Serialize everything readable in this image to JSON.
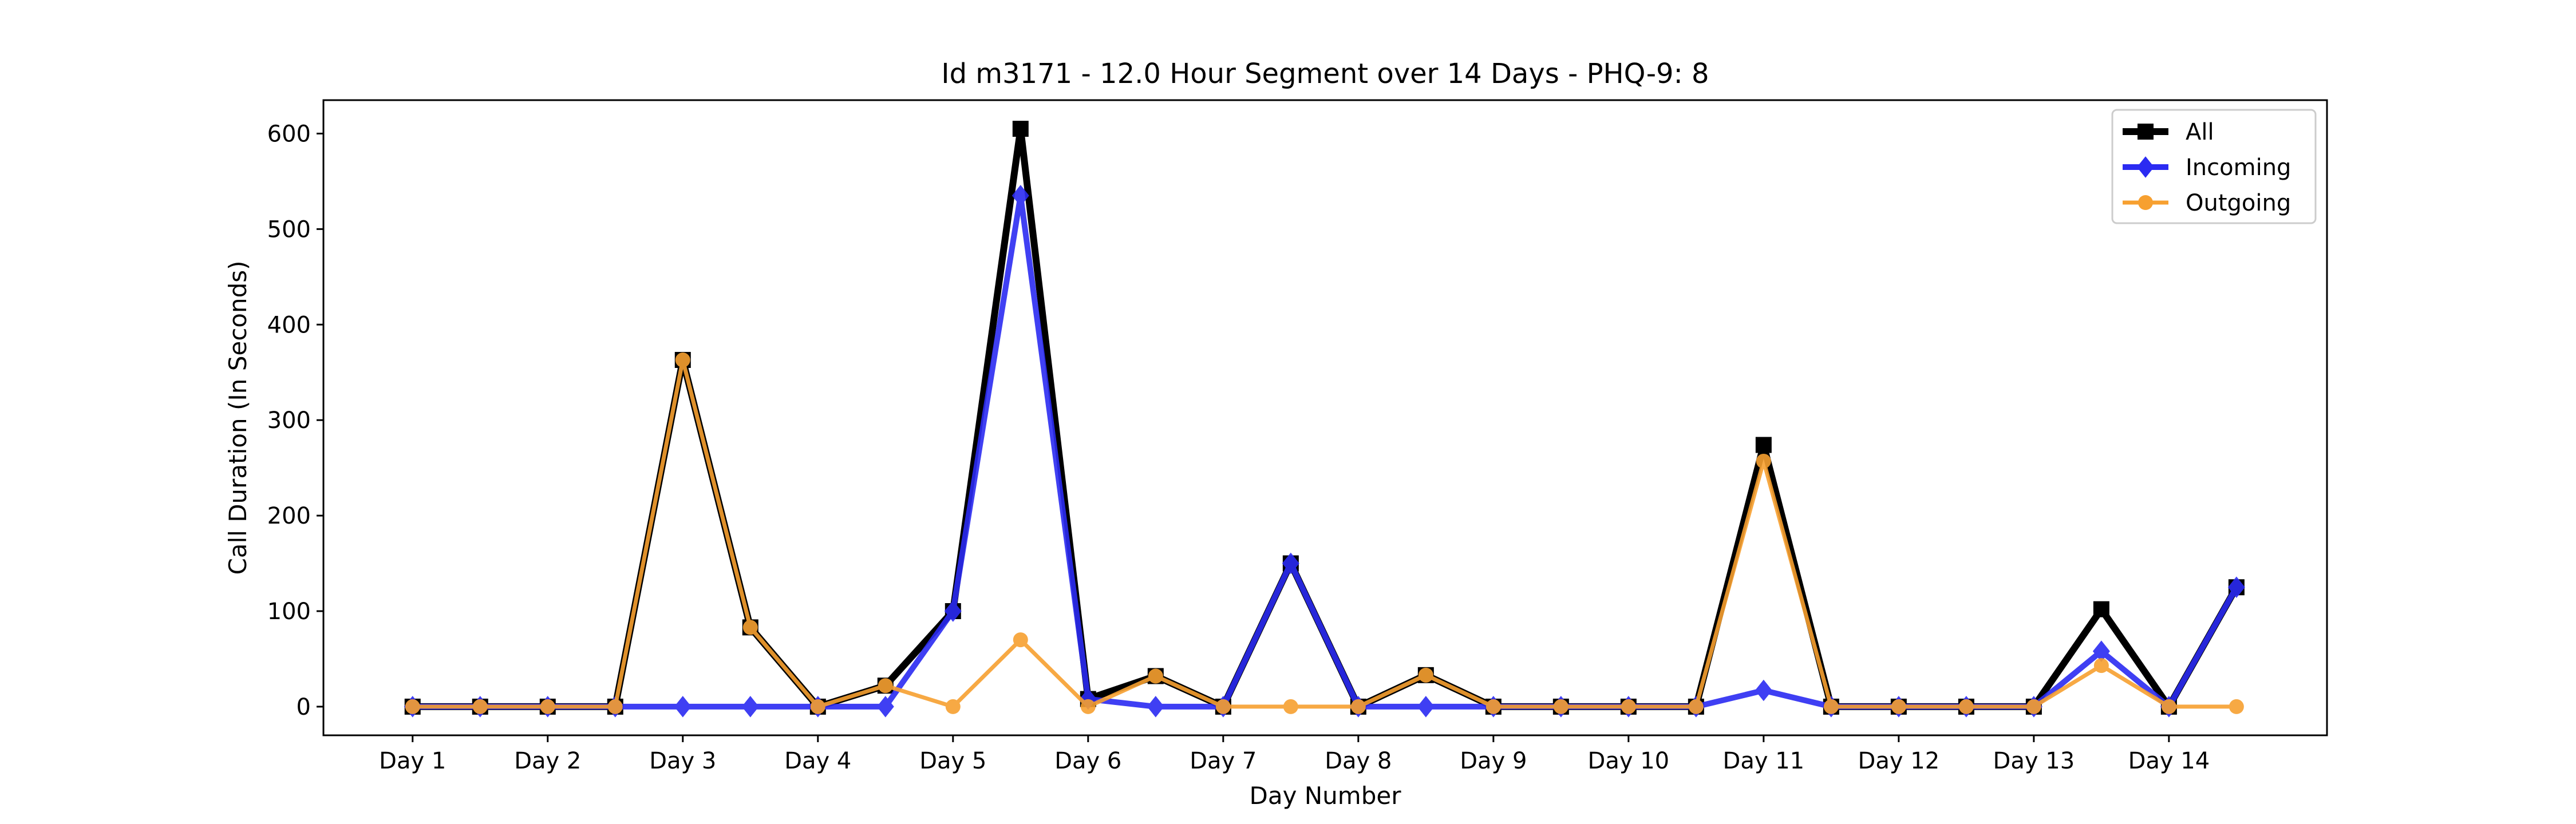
{
  "chart_data": {
    "type": "line",
    "title": "Id m3171 - 12.0 Hour Segment over 14 Days - PHQ-9: 8",
    "xlabel": "Day Number",
    "ylabel": "Call Duration (In Seconds)",
    "x": [
      1,
      1.5,
      2,
      2.5,
      3,
      3.5,
      4,
      4.5,
      5,
      5.5,
      6,
      6.5,
      7,
      7.5,
      8,
      8.5,
      9,
      9.5,
      10,
      10.5,
      11,
      11.5,
      12,
      12.5,
      13,
      13.5,
      14,
      14.5
    ],
    "x_ticks": [
      1,
      2,
      3,
      4,
      5,
      6,
      7,
      8,
      9,
      10,
      11,
      12,
      13,
      14
    ],
    "x_tick_labels": [
      "Day 1",
      "Day 2",
      "Day 3",
      "Day 4",
      "Day 5",
      "Day 6",
      "Day 7",
      "Day 8",
      "Day 9",
      "Day 10",
      "Day 11",
      "Day 12",
      "Day 13",
      "Day 14"
    ],
    "xlim": [
      0.34,
      15.17
    ],
    "ylim": [
      -30,
      635
    ],
    "y_ticks": [
      0,
      100,
      200,
      300,
      400,
      500,
      600
    ],
    "grid": false,
    "legend_position": "top-right",
    "series": [
      {
        "name": "All",
        "color": "#000000",
        "marker": "square",
        "values": [
          0,
          0,
          0,
          0,
          363,
          83,
          0,
          22,
          100,
          605,
          8,
          32,
          0,
          150,
          0,
          33,
          0,
          0,
          0,
          0,
          274,
          0,
          0,
          0,
          0,
          102,
          0,
          125
        ]
      },
      {
        "name": "Incoming",
        "color": "#2b2bf2",
        "marker": "diamond",
        "values": [
          0,
          0,
          0,
          0,
          0,
          0,
          0,
          0,
          100,
          535,
          8,
          0,
          0,
          150,
          0,
          0,
          0,
          0,
          0,
          0,
          17,
          0,
          0,
          0,
          0,
          58,
          0,
          125
        ]
      },
      {
        "name": "Outgoing",
        "color": "#f7a030",
        "marker": "circle",
        "values": [
          0,
          0,
          0,
          0,
          363,
          83,
          0,
          22,
          0,
          70,
          0,
          32,
          0,
          0,
          0,
          33,
          0,
          0,
          0,
          0,
          257,
          0,
          0,
          0,
          0,
          43,
          0,
          0
        ]
      }
    ]
  }
}
